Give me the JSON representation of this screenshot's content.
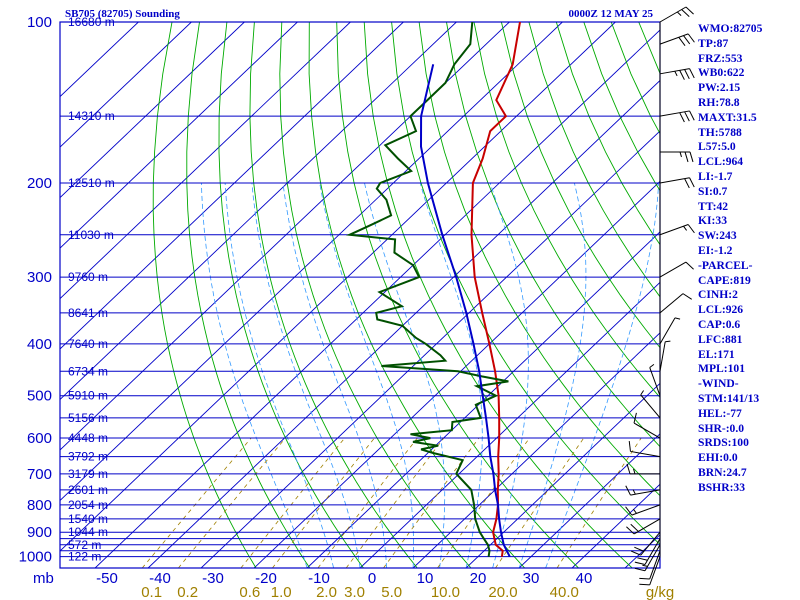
{
  "header": {
    "station": "SB705 (82705) Sounding",
    "time": "0000Z 12 MAY 25"
  },
  "indices": [
    "WMO:82705",
    "TP:87",
    "FRZ:553",
    "WB0:622",
    "PW:2.15",
    "RH:78.8",
    "MAXT:31.5",
    "TH:5788",
    "L57:5.0",
    "LCL:964",
    "LI:-1.7",
    "SI:0.7",
    "TT:42",
    "KI:33",
    "SW:243",
    "EI:-1.2",
    "-PARCEL-",
    "CAPE:819",
    "CINH:2",
    "LCL:926",
    "CAP:0.6",
    "LFC:881",
    "EL:171",
    "MPL:101",
    "-WIND-",
    "STM:141/13",
    "HEL:-77",
    "SHR-:0.0",
    "SRDS:100",
    "EHI:0.0",
    "BRN:24.7",
    "BSHR:33"
  ],
  "chart_data": {
    "type": "line",
    "title": "SB705 (82705) Sounding",
    "subtitle": "0000Z 12 MAY 25",
    "xlabel": "",
    "ylabel": "mb",
    "pressure_ticks": [
      100,
      200,
      300,
      400,
      500,
      600,
      700,
      800,
      900,
      1000
    ],
    "isobars": [
      100,
      150,
      200,
      250,
      300,
      350,
      400,
      450,
      500,
      550,
      600,
      650,
      700,
      750,
      800,
      850,
      900,
      925,
      950,
      975,
      1000
    ],
    "temperature_ticks": [
      -50,
      -40,
      -30,
      -20,
      -10,
      0,
      10,
      20,
      30,
      40
    ],
    "mixing_ratio_ticks": [
      "0.1",
      "0.2",
      "0.6",
      "1.0",
      "2.0",
      "3.0",
      "5.0",
      "10.0",
      "20.0",
      "40.0"
    ],
    "mixing_ratio_unit": "g/kg",
    "height_labels": [
      {
        "p": 100,
        "h": "16680 m"
      },
      {
        "p": 150,
        "h": "14310 m"
      },
      {
        "p": 200,
        "h": "12510 m"
      },
      {
        "p": 250,
        "h": "11030 m"
      },
      {
        "p": 300,
        "h": "9760 m"
      },
      {
        "p": 350,
        "h": "8641 m"
      },
      {
        "p": 400,
        "h": "7640 m"
      },
      {
        "p": 450,
        "h": "6734 m"
      },
      {
        "p": 500,
        "h": "5910 m"
      },
      {
        "p": 550,
        "h": "5156 m"
      },
      {
        "p": 600,
        "h": "4448 m"
      },
      {
        "p": 650,
        "h": "3792 m"
      },
      {
        "p": 700,
        "h": "3179 m"
      },
      {
        "p": 750,
        "h": "2601 m"
      },
      {
        "p": 800,
        "h": "2054 m"
      },
      {
        "p": 850,
        "h": "1540 m"
      },
      {
        "p": 900,
        "h": "1044 m"
      },
      {
        "p": 950,
        "h": "572 m"
      },
      {
        "p": 1000,
        "h": "122 m"
      }
    ],
    "series": [
      {
        "name": "",
        "color": "#c80000",
        "points": [
          [
            1000,
            24.5
          ],
          [
            975,
            23.5
          ],
          [
            950,
            21.0
          ],
          [
            925,
            19.5
          ],
          [
            900,
            18.0
          ],
          [
            850,
            16.0
          ],
          [
            800,
            13.5
          ],
          [
            750,
            10.5
          ],
          [
            700,
            7.5
          ],
          [
            650,
            4.0
          ],
          [
            600,
            0.5
          ],
          [
            550,
            -3.5
          ],
          [
            500,
            -8.0
          ],
          [
            450,
            -13.5
          ],
          [
            400,
            -20.0
          ],
          [
            350,
            -27.5
          ],
          [
            300,
            -36.0
          ],
          [
            250,
            -45.0
          ],
          [
            200,
            -55.0
          ],
          [
            180,
            -58.0
          ],
          [
            160,
            -62.0
          ],
          [
            150,
            -62.0
          ],
          [
            140,
            -67.0
          ],
          [
            120,
            -71.0
          ],
          [
            100,
            -78.0
          ]
        ]
      },
      {
        "name": "",
        "color": "#005000",
        "points": [
          [
            1000,
            22.0
          ],
          [
            975,
            21.0
          ],
          [
            950,
            19.5
          ],
          [
            925,
            17.5
          ],
          [
            900,
            15.5
          ],
          [
            850,
            12.0
          ],
          [
            800,
            9.0
          ],
          [
            750,
            5.5
          ],
          [
            700,
            -0.5
          ],
          [
            660,
            -2.0
          ],
          [
            640,
            -9.0
          ],
          [
            630,
            -12.0
          ],
          [
            620,
            -9.5
          ],
          [
            610,
            -15.0
          ],
          [
            600,
            -12.5
          ],
          [
            590,
            -17.0
          ],
          [
            580,
            -10.0
          ],
          [
            560,
            -11.5
          ],
          [
            550,
            -7.0
          ],
          [
            520,
            -10.5
          ],
          [
            500,
            -8.5
          ],
          [
            480,
            -14.0
          ],
          [
            470,
            -9.0
          ],
          [
            460,
            -15.0
          ],
          [
            450,
            -20.5
          ],
          [
            440,
            -36.0
          ],
          [
            430,
            -25.0
          ],
          [
            420,
            -27.0
          ],
          [
            400,
            -32.0
          ],
          [
            390,
            -35.0
          ],
          [
            370,
            -40.0
          ],
          [
            360,
            -46.0
          ],
          [
            350,
            -47.5
          ],
          [
            340,
            -44.0
          ],
          [
            320,
            -51.0
          ],
          [
            300,
            -46.5
          ],
          [
            285,
            -50.0
          ],
          [
            270,
            -56.0
          ],
          [
            255,
            -58.5
          ],
          [
            250,
            -68.0
          ],
          [
            240,
            -66.0
          ],
          [
            230,
            -64.0
          ],
          [
            215,
            -68.0
          ],
          [
            205,
            -72.0
          ],
          [
            200,
            -72.5
          ],
          [
            190,
            -69.0
          ],
          [
            180,
            -74.0
          ],
          [
            170,
            -79.0
          ],
          [
            160,
            -76.0
          ],
          [
            150,
            -80.0
          ],
          [
            140,
            -80.0
          ],
          [
            130,
            -80.0
          ],
          [
            120,
            -82.0
          ],
          [
            110,
            -83.0
          ],
          [
            100,
            -87.0
          ]
        ]
      },
      {
        "name": "",
        "color": "#0000c8",
        "points": [
          [
            1000,
            26.0
          ],
          [
            950,
            22.5
          ],
          [
            900,
            19.5
          ],
          [
            850,
            16.5
          ],
          [
            800,
            13.5
          ],
          [
            750,
            10.0
          ],
          [
            700,
            6.5
          ],
          [
            650,
            2.5
          ],
          [
            600,
            -1.5
          ],
          [
            550,
            -6.0
          ],
          [
            500,
            -11.0
          ],
          [
            450,
            -16.5
          ],
          [
            400,
            -23.0
          ],
          [
            350,
            -30.5
          ],
          [
            300,
            -39.5
          ],
          [
            250,
            -50.5
          ],
          [
            200,
            -63.5
          ],
          [
            171,
            -72.0
          ],
          [
            150,
            -78.0
          ],
          [
            120,
            -86.0
          ]
        ]
      }
    ],
    "wind_barbs": [
      {
        "p": 1000,
        "dir": 200,
        "spd": 10
      },
      {
        "p": 975,
        "dir": 200,
        "spd": 10
      },
      {
        "p": 950,
        "dir": 210,
        "spd": 15
      },
      {
        "p": 925,
        "dir": 210,
        "spd": 20
      },
      {
        "p": 900,
        "dir": 220,
        "spd": 20
      },
      {
        "p": 850,
        "dir": 240,
        "spd": 20
      },
      {
        "p": 800,
        "dir": 250,
        "spd": 15
      },
      {
        "p": 750,
        "dir": 260,
        "spd": 15
      },
      {
        "p": 700,
        "dir": 270,
        "spd": 15
      },
      {
        "p": 650,
        "dir": 280,
        "spd": 10
      },
      {
        "p": 600,
        "dir": 300,
        "spd": 10
      },
      {
        "p": 550,
        "dir": 320,
        "spd": 5
      },
      {
        "p": 500,
        "dir": 340,
        "spd": 5
      },
      {
        "p": 450,
        "dir": 10,
        "spd": 5
      },
      {
        "p": 400,
        "dir": 30,
        "spd": 5
      },
      {
        "p": 350,
        "dir": 50,
        "spd": 10
      },
      {
        "p": 300,
        "dir": 60,
        "spd": 10
      },
      {
        "p": 250,
        "dir": 70,
        "spd": 15
      },
      {
        "p": 200,
        "dir": 80,
        "spd": 20
      },
      {
        "p": 175,
        "dir": 90,
        "spd": 25
      },
      {
        "p": 150,
        "dir": 80,
        "spd": 30
      },
      {
        "p": 125,
        "dir": 80,
        "spd": 35
      },
      {
        "p": 110,
        "dir": 70,
        "spd": 30
      },
      {
        "p": 100,
        "dir": 60,
        "spd": 25
      }
    ],
    "colors": {
      "isobar": "#0000c8",
      "isotherm": "#0000c8",
      "dry_adiabat": "#00aa00",
      "moist_adiabat": "#3399ff",
      "mixing_ratio": "#a08000"
    }
  }
}
